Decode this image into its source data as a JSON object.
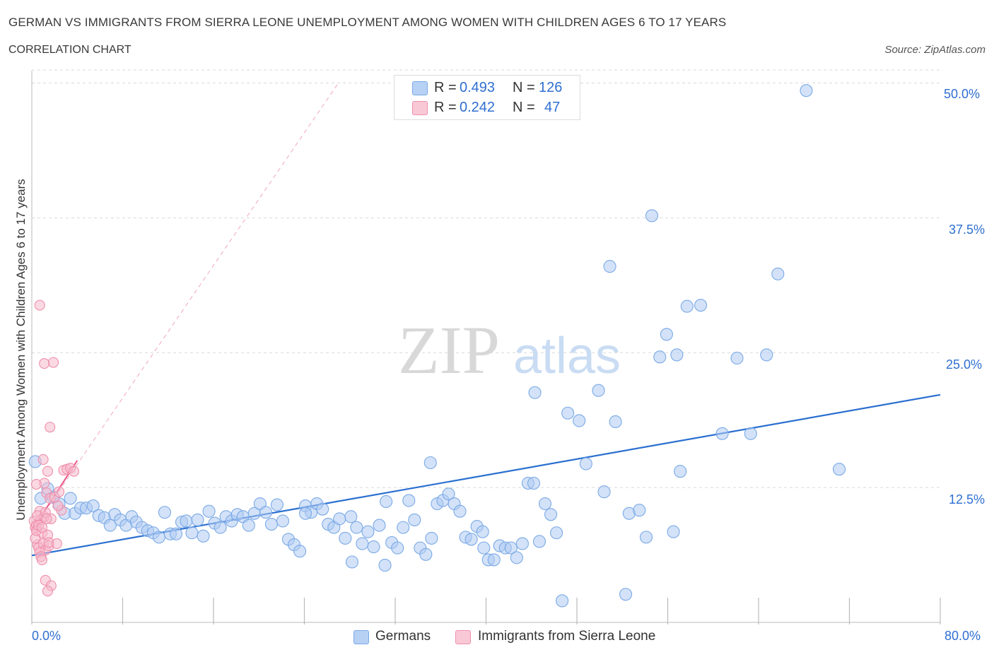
{
  "header": {
    "title": "GERMAN VS IMMIGRANTS FROM SIERRA LEONE UNEMPLOYMENT AMONG WOMEN WITH CHILDREN AGES 6 TO 17 YEARS",
    "subtitle": "CORRELATION CHART",
    "source": "Source: ZipAtlas.com"
  },
  "watermark": {
    "zip": "ZIP",
    "atlas": "atlas"
  },
  "stats_legend": {
    "rows": [
      {
        "r_label": "R =",
        "r_value": "0.493",
        "n_label": "N =",
        "n_value": "126",
        "color": "#aecbf2"
      },
      {
        "r_label": "R =",
        "r_value": "0.242",
        "n_label": "N =",
        "n_value": "47",
        "color": "#f6b9cc"
      }
    ]
  },
  "colors": {
    "germans_fill": "#aecbf2",
    "germans_stroke": "#7aa9e6",
    "germans_line": "#2a6fd0",
    "sierra_fill": "#f6b9cc",
    "sierra_stroke": "#ee8fab",
    "sierra_line": "#e8578a",
    "axis_text": "#2f6fd1",
    "grid": "#d9d9d9"
  },
  "chart_data": {
    "type": "scatter",
    "title": "GERMAN VS IMMIGRANTS FROM SIERRA LEONE UNEMPLOYMENT AMONG WOMEN WITH CHILDREN AGES 6 TO 17 YEARS",
    "subtitle": "CORRELATION CHART",
    "xlabel": "",
    "ylabel": "Unemployment Among Women with Children Ages 6 to 17 years",
    "xlim": [
      0,
      80
    ],
    "ylim": [
      0,
      52
    ],
    "x_tick_labels": [
      "0.0%",
      "80.0%"
    ],
    "y_ticks": [
      12.5,
      25.0,
      37.5,
      50.0
    ],
    "y_tick_labels": [
      "12.5%",
      "25.0%",
      "37.5%",
      "50.0%"
    ],
    "grid": true,
    "legend_position": "bottom",
    "series": [
      {
        "name": "Germans",
        "r": 0.493,
        "n": 126,
        "trend": {
          "x": [
            0,
            80
          ],
          "y": [
            6.2,
            21.1
          ]
        },
        "points": [
          [
            0.3,
            14.9
          ],
          [
            0.8,
            11.5
          ],
          [
            1.4,
            12.4
          ],
          [
            1.9,
            11.6
          ],
          [
            2.4,
            11.0
          ],
          [
            2.9,
            10.1
          ],
          [
            3.4,
            11.5
          ],
          [
            3.8,
            10.1
          ],
          [
            4.3,
            10.6
          ],
          [
            4.8,
            10.6
          ],
          [
            5.4,
            10.8
          ],
          [
            5.9,
            9.9
          ],
          [
            6.4,
            9.7
          ],
          [
            6.9,
            9.0
          ],
          [
            7.3,
            10.0
          ],
          [
            7.8,
            9.5
          ],
          [
            8.3,
            9.0
          ],
          [
            8.8,
            9.8
          ],
          [
            9.2,
            9.3
          ],
          [
            9.7,
            8.8
          ],
          [
            10.2,
            8.5
          ],
          [
            10.7,
            8.3
          ],
          [
            11.2,
            7.9
          ],
          [
            11.7,
            10.2
          ],
          [
            12.2,
            8.2
          ],
          [
            12.7,
            8.2
          ],
          [
            13.2,
            9.3
          ],
          [
            13.6,
            9.4
          ],
          [
            14.1,
            8.3
          ],
          [
            14.6,
            9.5
          ],
          [
            15.1,
            8.0
          ],
          [
            15.6,
            10.3
          ],
          [
            16.1,
            9.2
          ],
          [
            16.6,
            8.8
          ],
          [
            17.1,
            9.8
          ],
          [
            17.6,
            9.4
          ],
          [
            18.1,
            10.0
          ],
          [
            18.6,
            9.8
          ],
          [
            19.1,
            9.0
          ],
          [
            19.6,
            10.1
          ],
          [
            20.1,
            11.0
          ],
          [
            20.6,
            10.2
          ],
          [
            21.1,
            9.1
          ],
          [
            21.6,
            10.9
          ],
          [
            22.1,
            9.4
          ],
          [
            22.6,
            7.7
          ],
          [
            23.1,
            7.2
          ],
          [
            23.6,
            6.6
          ],
          [
            24.1,
            10.8
          ],
          [
            24.6,
            10.2
          ],
          [
            25.1,
            11.0
          ],
          [
            25.6,
            10.5
          ],
          [
            26.1,
            9.1
          ],
          [
            26.6,
            8.8
          ],
          [
            27.1,
            9.6
          ],
          [
            27.6,
            7.8
          ],
          [
            28.1,
            9.8
          ],
          [
            28.6,
            8.8
          ],
          [
            29.1,
            7.3
          ],
          [
            29.6,
            8.4
          ],
          [
            30.1,
            7.0
          ],
          [
            30.6,
            9.0
          ],
          [
            31.2,
            11.2
          ],
          [
            31.7,
            7.4
          ],
          [
            32.2,
            6.9
          ],
          [
            32.7,
            8.8
          ],
          [
            33.2,
            11.3
          ],
          [
            33.7,
            9.5
          ],
          [
            34.2,
            6.9
          ],
          [
            34.7,
            6.3
          ],
          [
            35.2,
            7.8
          ],
          [
            35.7,
            11.0
          ],
          [
            36.2,
            11.3
          ],
          [
            36.7,
            11.9
          ],
          [
            37.2,
            11.0
          ],
          [
            37.7,
            10.3
          ],
          [
            38.2,
            7.9
          ],
          [
            38.7,
            7.7
          ],
          [
            39.2,
            8.9
          ],
          [
            39.7,
            8.4
          ],
          [
            40.2,
            5.8
          ],
          [
            40.7,
            5.8
          ],
          [
            41.2,
            7.1
          ],
          [
            41.7,
            6.9
          ],
          [
            42.2,
            6.9
          ],
          [
            42.7,
            6.0
          ],
          [
            43.2,
            7.3
          ],
          [
            43.7,
            12.9
          ],
          [
            44.2,
            12.9
          ],
          [
            44.7,
            7.5
          ],
          [
            45.2,
            11.0
          ],
          [
            45.7,
            10.0
          ],
          [
            46.2,
            8.3
          ],
          [
            46.7,
            2.0
          ],
          [
            31.1,
            5.3
          ],
          [
            28.2,
            5.6
          ],
          [
            39.8,
            6.9
          ],
          [
            35.1,
            14.8
          ],
          [
            24.1,
            10.1
          ],
          [
            48.2,
            18.7
          ],
          [
            48.8,
            14.7
          ],
          [
            49.9,
            21.5
          ],
          [
            50.4,
            12.1
          ],
          [
            51.4,
            18.6
          ],
          [
            52.6,
            10.1
          ],
          [
            54.1,
            7.9
          ],
          [
            55.3,
            24.6
          ],
          [
            55.9,
            26.7
          ],
          [
            56.8,
            24.8
          ],
          [
            57.7,
            29.3
          ],
          [
            58.9,
            29.4
          ],
          [
            60.8,
            17.5
          ],
          [
            62.1,
            24.5
          ],
          [
            63.3,
            17.5
          ],
          [
            64.7,
            24.8
          ],
          [
            65.7,
            32.3
          ],
          [
            68.2,
            49.3
          ],
          [
            71.1,
            14.2
          ],
          [
            57.1,
            14.0
          ],
          [
            56.5,
            8.4
          ],
          [
            54.6,
            37.7
          ],
          [
            50.9,
            33.0
          ],
          [
            53.5,
            10.4
          ],
          [
            47.2,
            19.4
          ],
          [
            44.3,
            21.3
          ],
          [
            52.3,
            2.6
          ]
        ]
      },
      {
        "name": "Immigrants from Sierra Leone",
        "r": 0.242,
        "n": 47,
        "trend": {
          "x": [
            0,
            4.0
          ],
          "y": [
            8.5,
            15.0
          ]
        },
        "trend_extension": {
          "x": [
            0,
            27.0
          ],
          "y": [
            8.5,
            50.0
          ]
        },
        "points": [
          [
            0.2,
            9.4
          ],
          [
            0.3,
            8.8
          ],
          [
            0.4,
            9.0
          ],
          [
            0.5,
            7.2
          ],
          [
            0.6,
            6.9
          ],
          [
            0.7,
            10.3
          ],
          [
            0.8,
            9.5
          ],
          [
            0.9,
            8.3
          ],
          [
            1.0,
            7.3
          ],
          [
            1.1,
            9.8
          ],
          [
            1.2,
            6.7
          ],
          [
            1.3,
            12.0
          ],
          [
            1.4,
            14.0
          ],
          [
            1.5,
            7.1
          ],
          [
            1.6,
            11.5
          ],
          [
            1.7,
            9.6
          ],
          [
            0.3,
            7.8
          ],
          [
            0.4,
            8.5
          ],
          [
            0.5,
            9.9
          ],
          [
            0.6,
            9.0
          ],
          [
            0.7,
            6.5
          ],
          [
            0.8,
            6.1
          ],
          [
            0.9,
            8.8
          ],
          [
            1.0,
            15.1
          ],
          [
            1.1,
            12.9
          ],
          [
            1.2,
            10.2
          ],
          [
            1.3,
            9.6
          ],
          [
            1.4,
            8.1
          ],
          [
            1.5,
            7.4
          ],
          [
            2.0,
            11.6
          ],
          [
            2.2,
            7.3
          ],
          [
            2.4,
            12.1
          ],
          [
            2.6,
            10.4
          ],
          [
            2.8,
            14.1
          ],
          [
            3.1,
            14.2
          ],
          [
            3.4,
            14.3
          ],
          [
            3.7,
            14.0
          ],
          [
            0.7,
            29.4
          ],
          [
            1.1,
            24.0
          ],
          [
            1.9,
            24.1
          ],
          [
            1.6,
            18.1
          ],
          [
            1.2,
            3.9
          ],
          [
            1.7,
            3.4
          ],
          [
            1.4,
            2.9
          ],
          [
            0.9,
            5.8
          ],
          [
            0.4,
            12.8
          ],
          [
            2.3,
            10.8
          ]
        ]
      }
    ]
  },
  "bottom_legend": {
    "items": [
      {
        "label": "Germans",
        "color": "#aecbf2"
      },
      {
        "label": "Immigrants from Sierra Leone",
        "color": "#f6b9cc"
      }
    ]
  }
}
